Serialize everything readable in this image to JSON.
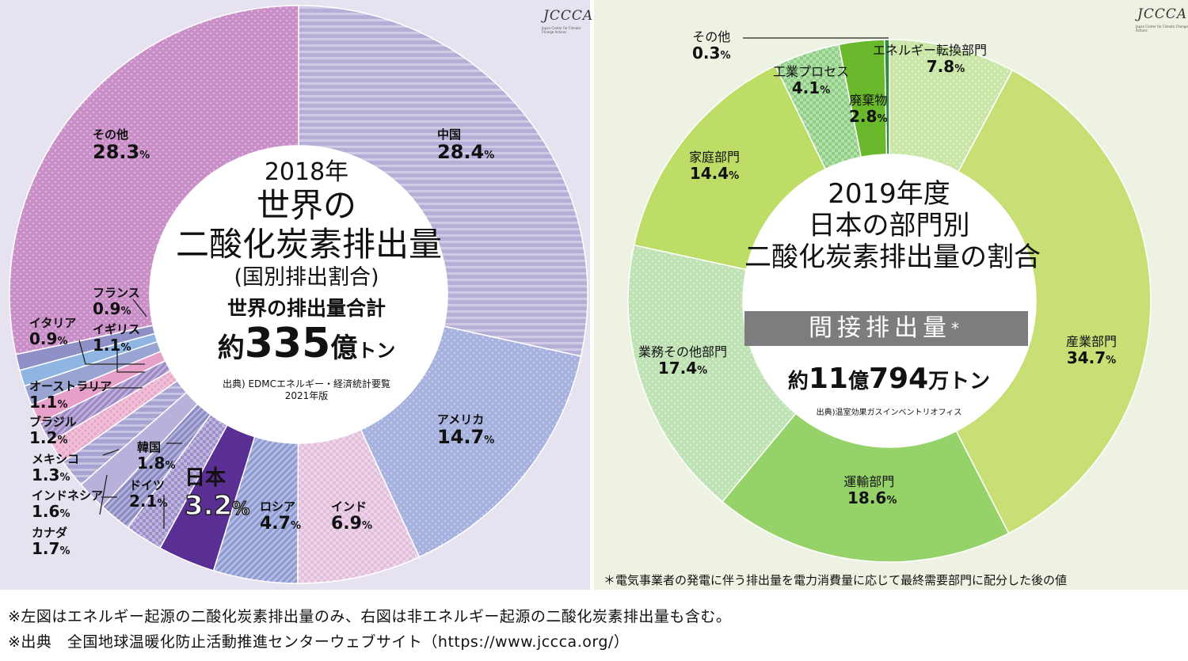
{
  "chart_data": [
    {
      "type": "pie",
      "title": "2018年 世界の二酸化炭素排出量",
      "subtitle": "(国別排出割合)",
      "total_label": "世界の排出量合計",
      "total_prefix": "約",
      "total_value": "335",
      "total_unit_big": "億",
      "total_unit_small": "トン",
      "source": "出典) EDMCエネルギー・経済統計要覧",
      "source_edition": "2021年版",
      "logo": "JCCCA",
      "logo_sub": "Japan Center for Climate Change Actions",
      "slices": [
        {
          "name": "中国",
          "value": 28.4,
          "color": "#b7aed7",
          "pattern": "hstripe"
        },
        {
          "name": "アメリカ",
          "value": 14.7,
          "color": "#a6b1de",
          "pattern": "dots"
        },
        {
          "name": "インド",
          "value": 6.9,
          "color": "#e2bedb",
          "pattern": "check"
        },
        {
          "name": "ロシア",
          "value": 4.7,
          "color": "#8f9bd3",
          "pattern": "diag"
        },
        {
          "name": "日本",
          "value": 3.2,
          "color": "#5a2f93",
          "pattern": "none"
        },
        {
          "name": "ドイツ",
          "value": 2.1,
          "color": "#9d8fcb",
          "pattern": "check"
        },
        {
          "name": "韓国",
          "value": 1.8,
          "color": "#8b8ac4",
          "pattern": "diag"
        },
        {
          "name": "カナダ",
          "value": 1.7,
          "color": "#b9b1dc",
          "pattern": "none"
        },
        {
          "name": "インドネシア",
          "value": 1.6,
          "color": "#a7a3d2",
          "pattern": "hstripe"
        },
        {
          "name": "メキシコ",
          "value": 1.3,
          "color": "#e9a9c9",
          "pattern": "grid"
        },
        {
          "name": "ブラジル",
          "value": 1.2,
          "color": "#9c88c4",
          "pattern": "diag"
        },
        {
          "name": "オーストラリア",
          "value": 1.1,
          "color": "#e7a0c9",
          "pattern": "none"
        },
        {
          "name": "イギリス",
          "value": 1.1,
          "color": "#9aa4d2",
          "pattern": "none"
        },
        {
          "name": "イタリア",
          "value": 0.9,
          "color": "#8fb5e3",
          "pattern": "none"
        },
        {
          "name": "フランス",
          "value": 0.9,
          "color": "#9090c8",
          "pattern": "none"
        },
        {
          "name": "その他",
          "value": 28.3,
          "color": "#c98ec7",
          "pattern": "dots"
        }
      ]
    },
    {
      "type": "pie",
      "title": "2019年度 日本の部門別 二酸化炭素排出量の割合",
      "band": "間接排出量",
      "band_mark": "*",
      "total_prefix": "約",
      "total_value1": "11",
      "total_unit1": "億",
      "total_value2": "794",
      "total_unit2": "万トン",
      "source": "出典)温室効果ガスインベントリオフィス",
      "note": "＊電気事業者の発電に伴う排出量を電力消費量に応じて最終需要部門に配分した後の値",
      "logo": "JCCCA",
      "logo_sub": "Japan Center for Climate Change Actions",
      "slices": [
        {
          "name": "エネルギー転換部門",
          "value": 7.8,
          "color": "#c9e6a7",
          "pattern": "dots"
        },
        {
          "name": "産業部門",
          "value": 34.7,
          "color": "#c7df74",
          "pattern": "none"
        },
        {
          "name": "運輸部門",
          "value": 18.6,
          "color": "#95d36a",
          "pattern": "none"
        },
        {
          "name": "業務その他部門",
          "value": 17.4,
          "color": "#bfe2b5",
          "pattern": "dots"
        },
        {
          "name": "家庭部門",
          "value": 14.4,
          "color": "#bedd66",
          "pattern": "none"
        },
        {
          "name": "工業プロセス",
          "value": 4.1,
          "color": "#8dcf83",
          "pattern": "check"
        },
        {
          "name": "廃棄物",
          "value": 2.8,
          "color": "#6ab92c",
          "pattern": "none"
        },
        {
          "name": "その他",
          "value": 0.3,
          "color": "#2f8c3f",
          "pattern": "none"
        }
      ]
    }
  ],
  "footer": {
    "line1": "※左図はエネルギー起源の二酸化炭素排出量のみ、右図は非エネルギー起源の二酸化炭素排出量も含む。",
    "line2": "※出典　全国地球温暖化防止活動推進センターウェブサイト（https://www.jccca.org/）"
  }
}
